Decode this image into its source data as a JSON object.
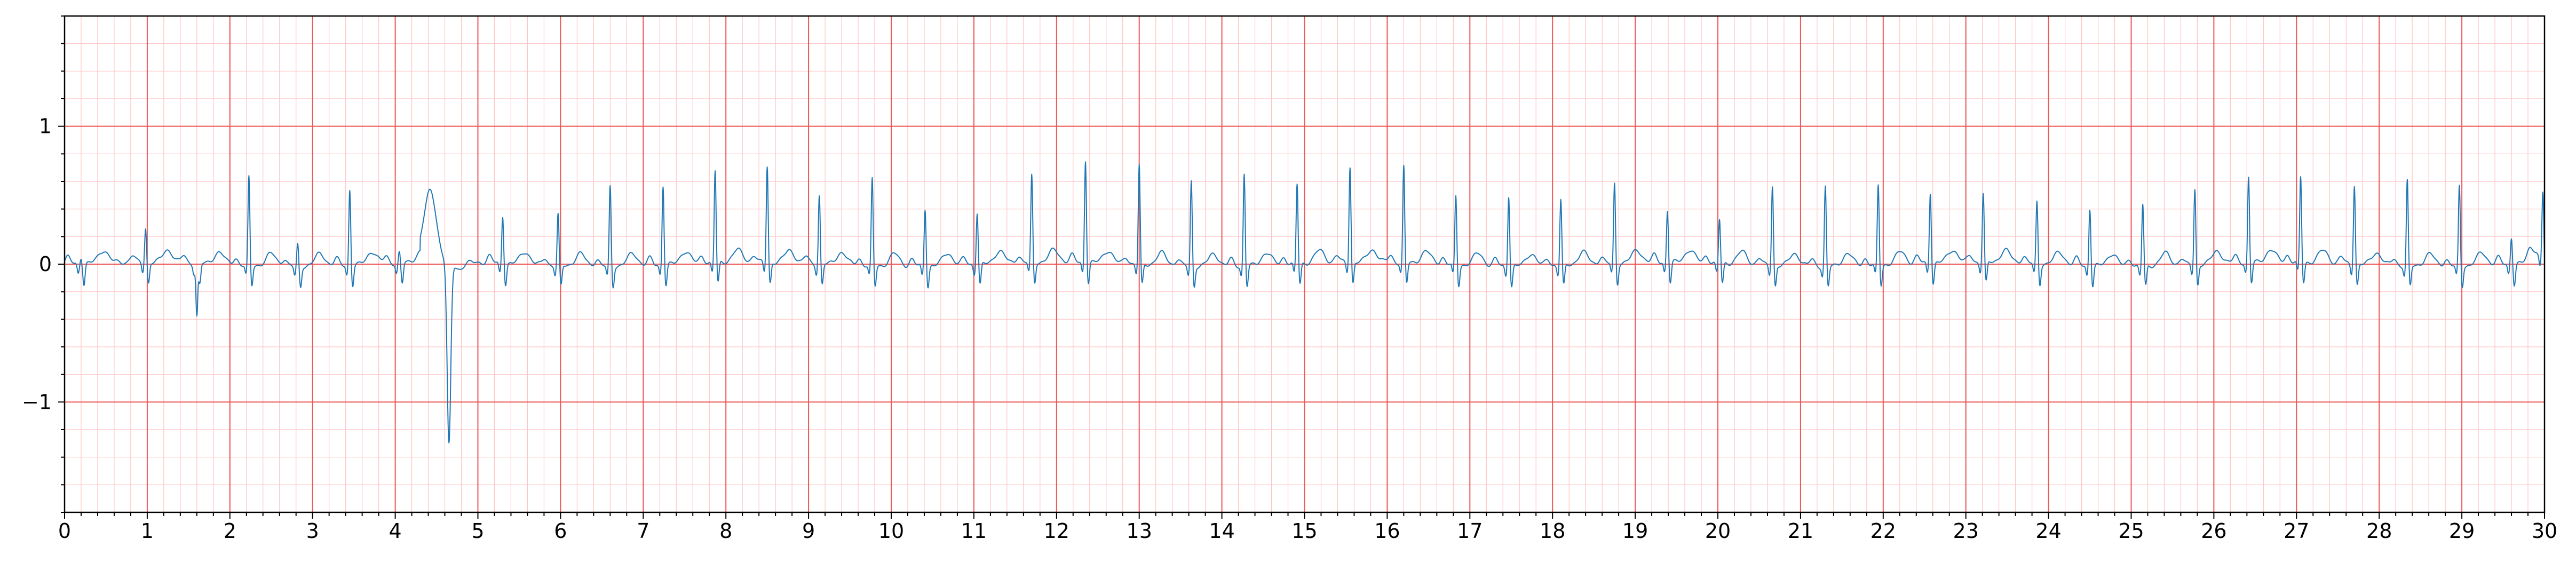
{
  "chart_data": {
    "type": "line",
    "title": "",
    "xlabel": "",
    "ylabel": "",
    "xlim": [
      0,
      30
    ],
    "ylim": [
      -1.8,
      1.8
    ],
    "x_ticks": [
      0,
      1,
      2,
      3,
      4,
      5,
      6,
      7,
      8,
      9,
      10,
      11,
      12,
      13,
      14,
      15,
      16,
      17,
      18,
      19,
      20,
      21,
      22,
      23,
      24,
      25,
      26,
      27,
      28,
      29,
      30
    ],
    "x_tick_labels": [
      "0",
      "1",
      "2",
      "3",
      "4",
      "5",
      "6",
      "7",
      "8",
      "9",
      "10",
      "11",
      "12",
      "13",
      "14",
      "15",
      "16",
      "17",
      "18",
      "19",
      "20",
      "21",
      "22",
      "23",
      "24",
      "25",
      "26",
      "27",
      "28",
      "29",
      "30"
    ],
    "y_ticks": [
      -1,
      0,
      1
    ],
    "y_tick_labels": [
      "−1",
      "0",
      "1"
    ],
    "grid": "on",
    "grid_major_x": 1,
    "grid_minor_x": 0.2,
    "grid_major_y": 1,
    "grid_minor_y": 0.2,
    "beat_times": [
      0.2,
      0.98,
      1.6,
      2.23,
      2.82,
      3.45,
      4.05,
      4.65,
      5.3,
      5.97,
      6.6,
      7.24,
      7.87,
      8.5,
      9.13,
      9.77,
      10.41,
      11.04,
      11.7,
      12.35,
      13.0,
      13.63,
      14.27,
      14.91,
      15.55,
      16.2,
      16.83,
      17.47,
      18.1,
      18.75,
      19.39,
      20.02,
      20.66,
      21.3,
      21.94,
      22.57,
      23.21,
      23.86,
      24.5,
      25.14,
      25.77,
      26.42,
      27.05,
      27.7,
      28.34,
      28.97,
      29.6,
      29.98
    ],
    "beat_peaks": [
      0.05,
      0.25,
      -0.38,
      0.64,
      0.16,
      0.55,
      0.08,
      -1.33,
      0.35,
      0.37,
      0.58,
      0.58,
      0.67,
      0.7,
      0.5,
      0.63,
      0.42,
      0.38,
      0.63,
      0.75,
      0.72,
      0.62,
      0.67,
      0.58,
      0.7,
      0.7,
      0.5,
      0.52,
      0.48,
      0.58,
      0.38,
      0.32,
      0.58,
      0.58,
      0.58,
      0.52,
      0.5,
      0.45,
      0.42,
      0.45,
      0.55,
      0.62,
      0.62,
      0.58,
      0.62,
      0.58,
      0.2,
      0.5
    ],
    "series": [
      {
        "color": "#1f77b4"
      }
    ],
    "colors": {
      "minor_grid": "#ffc4c4",
      "major_grid": "#ee5555",
      "axes": "#000000",
      "line": "#1f77b4"
    }
  }
}
